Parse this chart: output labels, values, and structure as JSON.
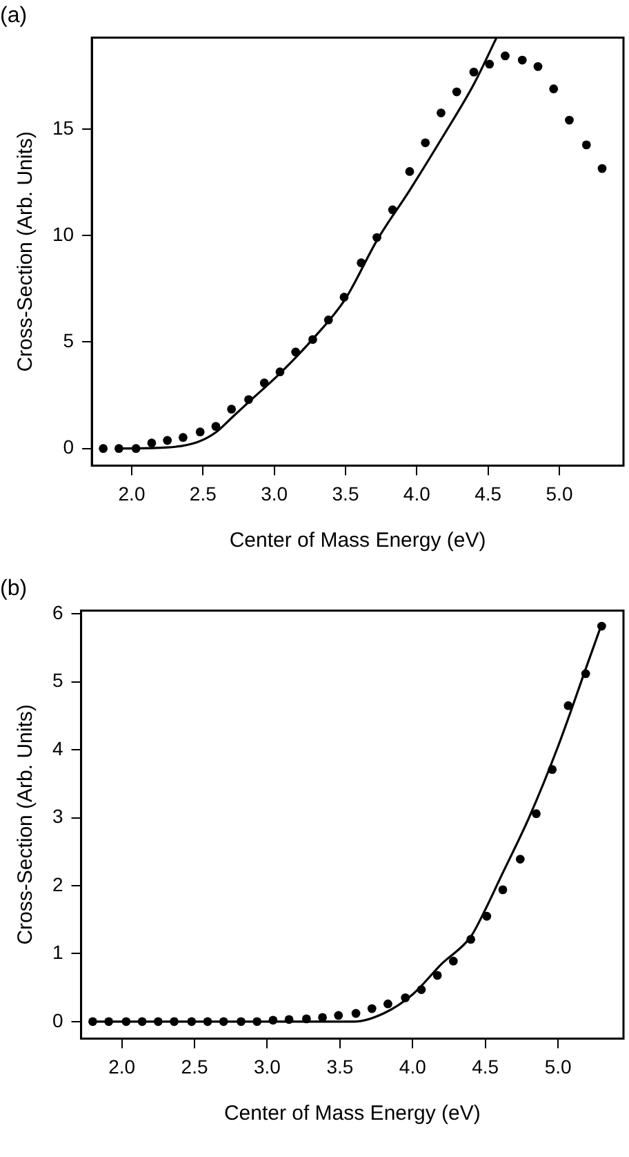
{
  "chart_data": [
    {
      "type": "scatter",
      "title": "(a)",
      "xlabel": "Center of Mass Energy (eV)",
      "ylabel": "Cross-Section (Arb. Units)",
      "xlim": [
        1.72,
        5.45
      ],
      "ylim": [
        -0.8,
        19.3
      ],
      "xticks": [
        {
          "value": 2,
          "label": "2.0"
        },
        {
          "value": 2.5,
          "label": "2.5"
        },
        {
          "value": 3,
          "label": "3.0"
        },
        {
          "value": 3.5,
          "label": "3.5"
        },
        {
          "value": 4,
          "label": "4.0"
        },
        {
          "value": 4.5,
          "label": "4.5"
        },
        {
          "value": 5,
          "label": "5.0"
        }
      ],
      "yticks": [
        0,
        5,
        10,
        15
      ],
      "grid": false,
      "legend": false,
      "series": [
        {
          "type": "scatter",
          "marker": "circle",
          "color": "#000000",
          "x": [
            1.8,
            1.91,
            2.03,
            2.14,
            2.25,
            2.36,
            2.48,
            2.59,
            2.7,
            2.82,
            2.93,
            3.04,
            3.15,
            3.27,
            3.38,
            3.49,
            3.61,
            3.72,
            3.83,
            3.95,
            4.06,
            4.17,
            4.28,
            4.4,
            4.51,
            4.62,
            4.74,
            4.85,
            4.96,
            5.07,
            5.19,
            5.3
          ],
          "values": [
            0,
            0,
            0,
            0.26,
            0.38,
            0.52,
            0.78,
            1.04,
            1.85,
            2.3,
            3.08,
            3.6,
            4.53,
            5.12,
            6.04,
            7.11,
            8.72,
            9.91,
            11.21,
            13.01,
            14.36,
            15.76,
            16.75,
            17.68,
            18.05,
            18.44,
            18.24,
            17.94,
            16.89,
            15.42,
            14.26,
            13.15
          ]
        },
        {
          "type": "line",
          "marker": "none",
          "line_style": "solid",
          "color": "#000000",
          "x": [
            1.9,
            2.25,
            2.46,
            2.59,
            2.71,
            2.82,
            3.04,
            3.27,
            3.5,
            3.72,
            3.95,
            4.18,
            4.4,
            4.56
          ],
          "values": [
            0,
            0.05,
            0.3,
            0.76,
            1.5,
            2.18,
            3.53,
            5.14,
            7.04,
            9.77,
            12.13,
            14.62,
            17.11,
            19.3
          ]
        }
      ]
    },
    {
      "type": "scatter",
      "title": "(b)",
      "xlabel": "Center of Mass Energy (eV)",
      "ylabel": "Cross-Section (Arb. Units)",
      "xlim": [
        1.72,
        5.45
      ],
      "ylim": [
        -0.25,
        6.05
      ],
      "xticks": [
        {
          "value": 2,
          "label": "2.0"
        },
        {
          "value": 2.5,
          "label": "2.5"
        },
        {
          "value": 3,
          "label": "3.0"
        },
        {
          "value": 3.5,
          "label": "3.5"
        },
        {
          "value": 4,
          "label": "4.0"
        },
        {
          "value": 4.5,
          "label": "4.5"
        },
        {
          "value": 5,
          "label": "5.0"
        }
      ],
      "yticks": [
        0,
        1,
        2,
        3,
        4,
        5,
        6
      ],
      "grid": false,
      "legend": false,
      "series": [
        {
          "type": "scatter",
          "marker": "circle",
          "color": "#000000",
          "x": [
            1.8,
            1.91,
            2.03,
            2.14,
            2.25,
            2.36,
            2.48,
            2.59,
            2.7,
            2.82,
            2.93,
            3.04,
            3.15,
            3.27,
            3.38,
            3.49,
            3.61,
            3.72,
            3.83,
            3.95,
            4.06,
            4.17,
            4.28,
            4.4,
            4.51,
            4.62,
            4.74,
            4.85,
            4.96,
            5.07,
            5.19,
            5.3
          ],
          "values": [
            0,
            0,
            0,
            0,
            0,
            0,
            0,
            0,
            0,
            0,
            0,
            0.02,
            0.03,
            0.04,
            0.06,
            0.09,
            0.12,
            0.19,
            0.26,
            0.35,
            0.47,
            0.68,
            0.89,
            1.21,
            1.55,
            1.94,
            2.39,
            3.06,
            3.71,
            4.65,
            5.12,
            5.82
          ]
        },
        {
          "type": "line",
          "marker": "none",
          "line_style": "solid",
          "color": "#000000",
          "x": [
            1.8,
            3.6,
            3.8,
            4.0,
            4.2,
            4.4,
            4.5,
            4.6,
            4.8,
            5.0,
            5.2,
            5.3
          ],
          "values": [
            0,
            0,
            0.12,
            0.4,
            0.85,
            1.25,
            1.65,
            2.1,
            3.0,
            4.05,
            5.25,
            5.85
          ]
        }
      ]
    }
  ]
}
